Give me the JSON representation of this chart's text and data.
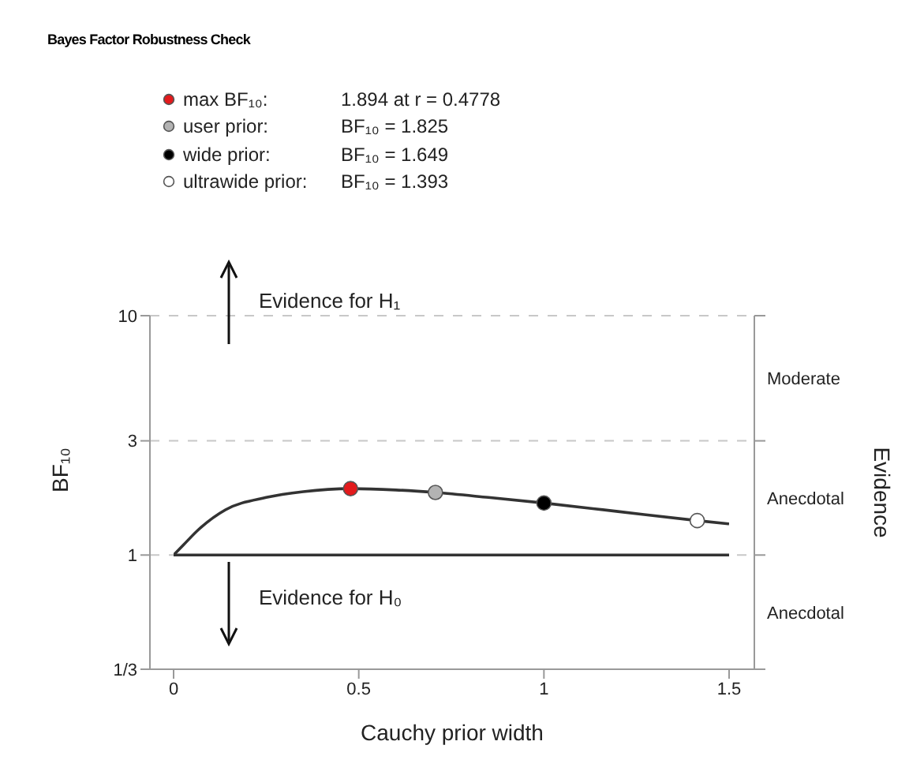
{
  "chart_data": {
    "type": "line",
    "title": "Bayes Factor Robustness Check",
    "xlabel": "Cauchy prior width",
    "ylabel": "BF₁₀",
    "series": [
      {
        "type": "line",
        "color": "#333333",
        "marker": "none",
        "x": [
          0,
          0.026,
          0.068,
          0.14,
          0.25,
          0.35,
          0.4778,
          0.6,
          0.707,
          0.85,
          1,
          1.2,
          1.414,
          1.5
        ],
        "values": [
          1,
          1.1,
          1.28,
          1.545,
          1.74,
          1.84,
          1.894,
          1.87,
          1.825,
          1.74,
          1.649,
          1.52,
          1.393,
          1.35
        ]
      },
      {
        "type": "scatter",
        "name": "max BF₁₀:",
        "color": "#e31a1c",
        "x": [
          0.4778
        ],
        "values": [
          1.894
        ]
      },
      {
        "type": "scatter",
        "name": "user prior:",
        "color": "#b3b3b3",
        "x": [
          0.707
        ],
        "values": [
          1.825
        ]
      },
      {
        "type": "scatter",
        "name": "wide prior:",
        "color": "#000000",
        "x": [
          1
        ],
        "values": [
          1.649
        ]
      },
      {
        "type": "scatter",
        "name": "ultrawide prior:",
        "color": "#ffffff",
        "x": [
          1.414
        ],
        "values": [
          1.393
        ]
      }
    ],
    "xlim": [
      0,
      1.5
    ],
    "xticks": [
      0,
      0.5,
      1,
      1.5
    ],
    "ylim": [
      0.3333,
      10
    ],
    "yticks": [
      {
        "value": 0.3333,
        "label": "1/3"
      },
      1,
      3,
      10
    ],
    "log": "y",
    "grid": "y",
    "marker": "circle",
    "legend": "top",
    "ref_lines": [
      {
        "axis": "y",
        "value": 1,
        "color": "#333333",
        "line_style": "solid"
      }
    ],
    "annotations": [
      "Evidence for H₁",
      "Evidence for H₀",
      "1.894 at r = 0.4778",
      "BF₁₀ = 1.825",
      "BF₁₀ = 1.649",
      "BF₁₀ = 1.393",
      "Moderate",
      "Anecdotal",
      "Anecdotal",
      "Evidence"
    ]
  }
}
